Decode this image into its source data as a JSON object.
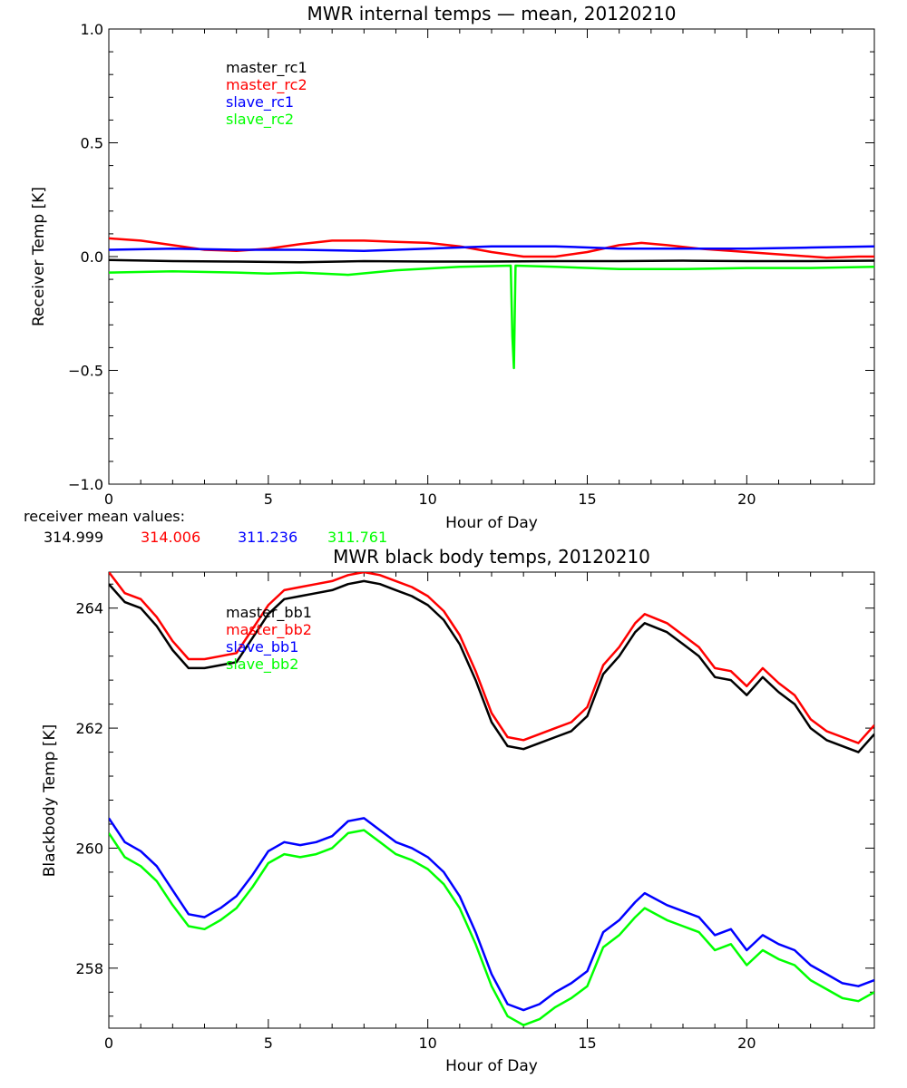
{
  "colors": {
    "master_1": "#000000",
    "master_2": "#ff0000",
    "slave_1": "#0000ff",
    "slave_2": "#00ff00"
  },
  "chart_data": [
    {
      "type": "line",
      "title": "MWR internal temps — mean, 20120210",
      "xlabel": "Hour of Day",
      "ylabel": "Receiver Temp [K]",
      "xlim": [
        0,
        24
      ],
      "ylim": [
        -1.0,
        1.0
      ],
      "xticks": [
        0,
        5,
        10,
        15,
        20
      ],
      "xtick_labels": [
        "0",
        "5",
        "10",
        "15",
        "20"
      ],
      "yticks": [
        -1.0,
        -0.5,
        0.0,
        0.5,
        1.0
      ],
      "ytick_labels": [
        "−1.0",
        "−0.5",
        "0.0",
        "0.5",
        "1.0"
      ],
      "legend": [
        "master_rc1",
        "master_rc2",
        "slave_rc1",
        "slave_rc2"
      ],
      "series": [
        {
          "name": "master_rc1",
          "color": "#000000",
          "x": [
            0,
            2,
            4,
            6,
            8,
            10,
            12,
            14,
            16,
            18,
            20,
            22,
            24
          ],
          "y": [
            -0.015,
            -0.02,
            -0.022,
            -0.025,
            -0.02,
            -0.022,
            -0.022,
            -0.02,
            -0.02,
            -0.018,
            -0.02,
            -0.02,
            -0.018
          ]
        },
        {
          "name": "master_rc2",
          "color": "#ff0000",
          "x": [
            0,
            1,
            2,
            3,
            4,
            5,
            6,
            7,
            8,
            9,
            10,
            11,
            12,
            13,
            14,
            15,
            16,
            16.7,
            17.5,
            18.5,
            19.5,
            20.5,
            21.5,
            22.5,
            23.5,
            24
          ],
          "y": [
            0.08,
            0.07,
            0.05,
            0.03,
            0.025,
            0.035,
            0.055,
            0.07,
            0.07,
            0.065,
            0.06,
            0.045,
            0.02,
            0.0,
            0.0,
            0.02,
            0.05,
            0.06,
            0.05,
            0.035,
            0.025,
            0.015,
            0.005,
            -0.005,
            0.0,
            0.0
          ]
        },
        {
          "name": "slave_rc1",
          "color": "#0000ff",
          "x": [
            0,
            2,
            4,
            6,
            8,
            10,
            12,
            14,
            16,
            18,
            20,
            22,
            24
          ],
          "y": [
            0.03,
            0.035,
            0.03,
            0.03,
            0.025,
            0.035,
            0.045,
            0.045,
            0.035,
            0.035,
            0.035,
            0.04,
            0.045
          ]
        },
        {
          "name": "slave_rc2",
          "color": "#00ff00",
          "x": [
            0,
            2,
            4,
            5,
            6,
            7.5,
            9,
            11,
            12.6,
            12.65,
            12.7,
            12.75,
            14,
            16,
            18,
            20,
            22,
            24
          ],
          "y": [
            -0.07,
            -0.065,
            -0.07,
            -0.075,
            -0.07,
            -0.08,
            -0.06,
            -0.045,
            -0.04,
            -0.35,
            -0.49,
            -0.04,
            -0.045,
            -0.055,
            -0.055,
            -0.05,
            -0.05,
            -0.045
          ]
        }
      ]
    },
    {
      "type": "line",
      "title": "MWR black body temps, 20120210",
      "xlabel": "Hour of Day",
      "ylabel": "Blackbody Temp [K]",
      "xlim": [
        0,
        24
      ],
      "ylim": [
        257.0,
        264.6
      ],
      "xticks": [
        0,
        5,
        10,
        15,
        20
      ],
      "xtick_labels": [
        "0",
        "5",
        "10",
        "15",
        "20"
      ],
      "yticks": [
        258,
        260,
        262,
        264
      ],
      "ytick_labels": [
        "258",
        "260",
        "262",
        "264"
      ],
      "legend": [
        "master_bb1",
        "master_bb2",
        "slave_bb1",
        "slave_bb2"
      ],
      "series": [
        {
          "name": "master_bb1",
          "color": "#000000",
          "x": [
            0,
            0.5,
            1,
            1.5,
            2,
            2.5,
            3,
            3.5,
            4,
            4.5,
            5,
            5.5,
            6,
            6.5,
            7,
            7.5,
            8,
            8.5,
            9,
            9.5,
            10,
            10.5,
            11,
            11.5,
            12,
            12.5,
            13,
            13.5,
            14,
            14.5,
            15,
            15.5,
            16,
            16.5,
            16.8,
            17.5,
            18,
            18.5,
            19,
            19.5,
            20,
            20.5,
            21,
            21.5,
            22,
            22.5,
            23,
            23.5,
            24
          ],
          "y": [
            264.4,
            264.1,
            264.0,
            263.7,
            263.3,
            263.0,
            263.0,
            263.05,
            263.1,
            263.5,
            263.9,
            264.15,
            264.2,
            264.25,
            264.3,
            264.4,
            264.45,
            264.4,
            264.3,
            264.2,
            264.05,
            263.8,
            263.4,
            262.8,
            262.1,
            261.7,
            261.65,
            261.75,
            261.85,
            261.95,
            262.2,
            262.9,
            263.2,
            263.6,
            263.75,
            263.6,
            263.4,
            263.2,
            262.85,
            262.8,
            262.55,
            262.85,
            262.6,
            262.4,
            262.0,
            261.8,
            261.7,
            261.6,
            261.9
          ]
        },
        {
          "name": "master_bb2",
          "color": "#ff0000",
          "x": [
            0,
            0.5,
            1,
            1.5,
            2,
            2.5,
            3,
            3.5,
            4,
            4.5,
            5,
            5.5,
            6,
            6.5,
            7,
            7.5,
            8,
            8.5,
            9,
            9.5,
            10,
            10.5,
            11,
            11.5,
            12,
            12.5,
            13,
            13.5,
            14,
            14.5,
            15,
            15.5,
            16,
            16.5,
            16.8,
            17.5,
            18,
            18.5,
            19,
            19.5,
            20,
            20.5,
            21,
            21.5,
            22,
            22.5,
            23,
            23.5,
            24
          ],
          "y": [
            264.6,
            264.25,
            264.15,
            263.85,
            263.45,
            263.15,
            263.15,
            263.2,
            263.25,
            263.65,
            264.05,
            264.3,
            264.35,
            264.4,
            264.45,
            264.55,
            264.6,
            264.55,
            264.45,
            264.35,
            264.2,
            263.95,
            263.55,
            262.95,
            262.25,
            261.85,
            261.8,
            261.9,
            262.0,
            262.1,
            262.35,
            263.05,
            263.35,
            263.75,
            263.9,
            263.75,
            263.55,
            263.35,
            263.0,
            262.95,
            262.7,
            263.0,
            262.75,
            262.55,
            262.15,
            261.95,
            261.85,
            261.75,
            262.05
          ]
        },
        {
          "name": "slave_bb1",
          "color": "#0000ff",
          "x": [
            0,
            0.5,
            1,
            1.5,
            2,
            2.5,
            3,
            3.5,
            4,
            4.5,
            5,
            5.5,
            6,
            6.5,
            7,
            7.5,
            8,
            8.5,
            9,
            9.5,
            10,
            10.5,
            11,
            11.5,
            12,
            12.5,
            13,
            13.5,
            14,
            14.5,
            15,
            15.5,
            16,
            16.5,
            16.8,
            17.5,
            18,
            18.5,
            19,
            19.5,
            20,
            20.5,
            21,
            21.5,
            22,
            22.5,
            23,
            23.5,
            24
          ],
          "y": [
            260.5,
            260.1,
            259.95,
            259.7,
            259.3,
            258.9,
            258.85,
            259.0,
            259.2,
            259.55,
            259.95,
            260.1,
            260.05,
            260.1,
            260.2,
            260.45,
            260.5,
            260.3,
            260.1,
            260.0,
            259.85,
            259.6,
            259.2,
            258.6,
            257.9,
            257.4,
            257.3,
            257.4,
            257.6,
            257.75,
            257.95,
            258.6,
            258.8,
            259.1,
            259.25,
            259.05,
            258.95,
            258.85,
            258.55,
            258.65,
            258.3,
            258.55,
            258.4,
            258.3,
            258.05,
            257.9,
            257.75,
            257.7,
            257.8
          ]
        },
        {
          "name": "slave_bb2",
          "color": "#00ff00",
          "x": [
            0,
            0.5,
            1,
            1.5,
            2,
            2.5,
            3,
            3.5,
            4,
            4.5,
            5,
            5.5,
            6,
            6.5,
            7,
            7.5,
            8,
            8.5,
            9,
            9.5,
            10,
            10.5,
            11,
            11.5,
            12,
            12.5,
            13,
            13.5,
            14,
            14.5,
            15,
            15.5,
            16,
            16.5,
            16.8,
            17.5,
            18,
            18.5,
            19,
            19.5,
            20,
            20.5,
            21,
            21.5,
            22,
            22.5,
            23,
            23.5,
            24
          ],
          "y": [
            260.25,
            259.85,
            259.7,
            259.45,
            259.05,
            258.7,
            258.65,
            258.8,
            259.0,
            259.35,
            259.75,
            259.9,
            259.85,
            259.9,
            260.0,
            260.25,
            260.3,
            260.1,
            259.9,
            259.8,
            259.65,
            259.4,
            259.0,
            258.4,
            257.7,
            257.2,
            257.05,
            257.15,
            257.35,
            257.5,
            257.7,
            258.35,
            258.55,
            258.85,
            259.0,
            258.8,
            258.7,
            258.6,
            258.3,
            258.4,
            258.05,
            258.3,
            258.15,
            258.05,
            257.8,
            257.65,
            257.5,
            257.45,
            257.6
          ]
        }
      ]
    }
  ],
  "receiver_means": {
    "label": "receiver mean values:",
    "values": [
      "314.999",
      "314.006",
      "311.236",
      "311.761"
    ]
  }
}
